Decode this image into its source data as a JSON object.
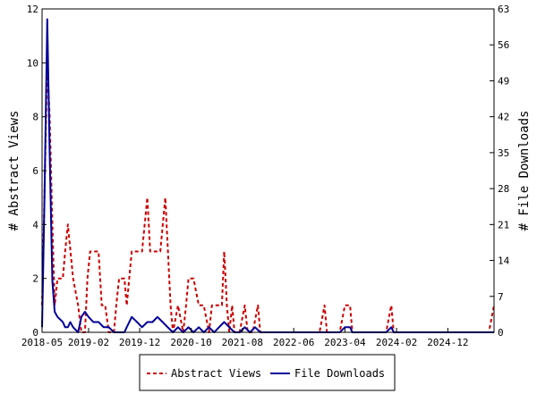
{
  "chart_data": {
    "type": "line",
    "ylabel": "# Abstract Views",
    "y2label": "# File Downloads",
    "x_tick_labels": [
      "2018-05",
      "2019-02",
      "2019-12",
      "2020-10",
      "2021-08",
      "2022-06",
      "2023-04",
      "2024-02",
      "2024-12"
    ],
    "x_range": [
      "2018-05",
      "2025-09"
    ],
    "ylim": [
      0,
      12
    ],
    "y_ticks": [
      0,
      2,
      4,
      6,
      8,
      10,
      12
    ],
    "y2lim": [
      0,
      63
    ],
    "y2_ticks": [
      0,
      7,
      14,
      21,
      28,
      35,
      42,
      49,
      56,
      63
    ],
    "grid": false,
    "legend_position": "bottom",
    "series": [
      {
        "name": "Abstract Views",
        "color": "#cc0000",
        "style": "dashed",
        "axis": "left",
        "points": [
          [
            "2018-05-01",
            1
          ],
          [
            "2018-05-15",
            5
          ],
          [
            "2018-06-01",
            10
          ],
          [
            "2018-06-15",
            8
          ],
          [
            "2018-07-01",
            4
          ],
          [
            "2018-07-15",
            1
          ],
          [
            "2018-08-01",
            2
          ],
          [
            "2018-08-15",
            2
          ],
          [
            "2018-09-01",
            2
          ],
          [
            "2018-09-15",
            3
          ],
          [
            "2018-10-01",
            4
          ],
          [
            "2018-11-01",
            2
          ],
          [
            "2018-12-01",
            1
          ],
          [
            "2018-12-20",
            0
          ],
          [
            "2019-01-10",
            0
          ],
          [
            "2019-01-25",
            2
          ],
          [
            "2019-02-10",
            3
          ],
          [
            "2019-03-01",
            3
          ],
          [
            "2019-04-01",
            3
          ],
          [
            "2019-04-20",
            1
          ],
          [
            "2019-05-10",
            1
          ],
          [
            "2019-06-01",
            0
          ],
          [
            "2019-07-01",
            0
          ],
          [
            "2019-07-15",
            1
          ],
          [
            "2019-08-01",
            2
          ],
          [
            "2019-09-01",
            2
          ],
          [
            "2019-09-15",
            1
          ],
          [
            "2019-10-15",
            3
          ],
          [
            "2019-11-15",
            3
          ],
          [
            "2019-12-15",
            3
          ],
          [
            "2020-01-15",
            5
          ],
          [
            "2020-02-01",
            3
          ],
          [
            "2020-03-01",
            3
          ],
          [
            "2020-04-01",
            3
          ],
          [
            "2020-05-01",
            5
          ],
          [
            "2020-06-01",
            1
          ],
          [
            "2020-06-15",
            0
          ],
          [
            "2020-07-15",
            1
          ],
          [
            "2020-08-15",
            0
          ],
          [
            "2020-09-01",
            1
          ],
          [
            "2020-09-15",
            2
          ],
          [
            "2020-10-15",
            2
          ],
          [
            "2020-11-15",
            1
          ],
          [
            "2020-12-15",
            1
          ],
          [
            "2021-01-15",
            0
          ],
          [
            "2021-02-01",
            1
          ],
          [
            "2021-03-01",
            1
          ],
          [
            "2021-04-01",
            1
          ],
          [
            "2021-04-15",
            3
          ],
          [
            "2021-05-01",
            1
          ],
          [
            "2021-05-15",
            0
          ],
          [
            "2021-06-01",
            1
          ],
          [
            "2021-06-15",
            0
          ],
          [
            "2021-07-15",
            0
          ],
          [
            "2021-08-15",
            1
          ],
          [
            "2021-09-01",
            0
          ],
          [
            "2021-10-01",
            0
          ],
          [
            "2021-11-01",
            1
          ],
          [
            "2021-11-15",
            0
          ],
          [
            "2022-01-01",
            0
          ],
          [
            "2022-04-01",
            0
          ],
          [
            "2022-06-01",
            0
          ],
          [
            "2022-09-01",
            0
          ],
          [
            "2022-11-01",
            0
          ],
          [
            "2022-12-01",
            1
          ],
          [
            "2022-12-15",
            0
          ],
          [
            "2023-03-01",
            0
          ],
          [
            "2023-04-01",
            1
          ],
          [
            "2023-05-01",
            1
          ],
          [
            "2023-05-15",
            0
          ],
          [
            "2023-09-01",
            0
          ],
          [
            "2023-12-01",
            0
          ],
          [
            "2024-01-01",
            1
          ],
          [
            "2024-01-15",
            0
          ],
          [
            "2024-06-01",
            0
          ],
          [
            "2024-12-01",
            0
          ],
          [
            "2025-06-01",
            0
          ],
          [
            "2025-08-01",
            0
          ],
          [
            "2025-09-01",
            1
          ]
        ]
      },
      {
        "name": "File Downloads",
        "color": "#000099",
        "style": "solid",
        "axis": "right",
        "points": [
          [
            "2018-05-01",
            1
          ],
          [
            "2018-05-15",
            25
          ],
          [
            "2018-06-01",
            61
          ],
          [
            "2018-06-15",
            35
          ],
          [
            "2018-07-01",
            10
          ],
          [
            "2018-07-15",
            4
          ],
          [
            "2018-08-01",
            3
          ],
          [
            "2018-09-01",
            2
          ],
          [
            "2018-09-15",
            1
          ],
          [
            "2018-10-01",
            1
          ],
          [
            "2018-10-15",
            2
          ],
          [
            "2018-11-01",
            1
          ],
          [
            "2018-12-01",
            0
          ],
          [
            "2018-12-20",
            3
          ],
          [
            "2019-01-10",
            4
          ],
          [
            "2019-02-01",
            3
          ],
          [
            "2019-03-01",
            2
          ],
          [
            "2019-04-01",
            2
          ],
          [
            "2019-05-01",
            1
          ],
          [
            "2019-06-01",
            1
          ],
          [
            "2019-07-01",
            0
          ],
          [
            "2019-08-01",
            0
          ],
          [
            "2019-09-01",
            0
          ],
          [
            "2019-09-15",
            1
          ],
          [
            "2019-10-15",
            3
          ],
          [
            "2019-11-15",
            2
          ],
          [
            "2019-12-15",
            1
          ],
          [
            "2020-01-15",
            2
          ],
          [
            "2020-02-15",
            2
          ],
          [
            "2020-03-15",
            3
          ],
          [
            "2020-04-15",
            2
          ],
          [
            "2020-05-15",
            1
          ],
          [
            "2020-06-15",
            0
          ],
          [
            "2020-07-15",
            1
          ],
          [
            "2020-08-15",
            0
          ],
          [
            "2020-09-15",
            1
          ],
          [
            "2020-10-15",
            0
          ],
          [
            "2020-11-15",
            1
          ],
          [
            "2020-12-15",
            0
          ],
          [
            "2021-01-15",
            1
          ],
          [
            "2021-02-15",
            0
          ],
          [
            "2021-03-15",
            1
          ],
          [
            "2021-04-15",
            2
          ],
          [
            "2021-05-15",
            1
          ],
          [
            "2021-06-15",
            0
          ],
          [
            "2021-07-15",
            0
          ],
          [
            "2021-08-15",
            1
          ],
          [
            "2021-09-15",
            0
          ],
          [
            "2021-10-15",
            1
          ],
          [
            "2021-11-15",
            0
          ],
          [
            "2022-01-01",
            0
          ],
          [
            "2022-06-01",
            0
          ],
          [
            "2022-12-01",
            0
          ],
          [
            "2023-03-01",
            0
          ],
          [
            "2023-04-01",
            1
          ],
          [
            "2023-05-01",
            1
          ],
          [
            "2023-05-15",
            0
          ],
          [
            "2023-12-01",
            0
          ],
          [
            "2024-01-01",
            1
          ],
          [
            "2024-01-15",
            0
          ],
          [
            "2024-06-01",
            0
          ],
          [
            "2025-09-01",
            0
          ]
        ]
      }
    ]
  }
}
